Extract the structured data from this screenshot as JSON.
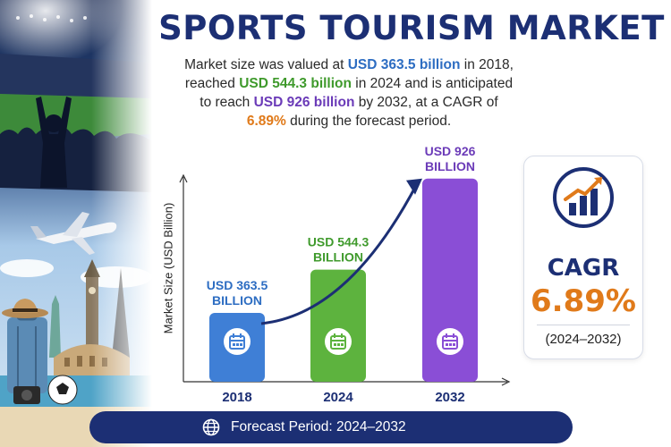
{
  "title": "SPORTS TOURISM MARKET",
  "description": {
    "p1": "Market size was valued at ",
    "v1": "USD 363.5 billion",
    "p2": " in 2018, reached ",
    "v2": "USD 544.3 billion",
    "p3": " in 2024 and is anticipated to reach ",
    "v3": "USD 926 billion",
    "p4": " by 2032, at a CAGR of ",
    "v4": "6.89%",
    "p5": " during the forecast period."
  },
  "chart_data": {
    "type": "bar",
    "categories": [
      "2018",
      "2024",
      "2032"
    ],
    "values": [
      363.5,
      544.3,
      926
    ],
    "value_labels": [
      [
        "USD 363.5",
        "BILLION"
      ],
      [
        "USD 544.3",
        "BILLION"
      ],
      [
        "USD 926",
        "BILLION"
      ]
    ],
    "ylabel": "Market Size (USD Billion)",
    "xlabel": "",
    "ylim": [
      0,
      1000
    ],
    "bar_colors": [
      "#3f7fd6",
      "#5db33e",
      "#8a4ed6"
    ],
    "label_colors": [
      "#2d6dc2",
      "#3f9a2c",
      "#6b3bb8"
    ],
    "trend_arrow": true,
    "grid": false
  },
  "cagr": {
    "label": "CAGR",
    "value": "6.89%",
    "period": "(2024–2032)"
  },
  "footer": {
    "text": "Forecast Period: 2024–2032"
  },
  "icons": {
    "calendar": "calendar-icon",
    "globe": "globe-icon",
    "growth": "growth-chart-icon"
  },
  "colors": {
    "brand": "#1c2f74",
    "accent": "#e07a1a"
  }
}
